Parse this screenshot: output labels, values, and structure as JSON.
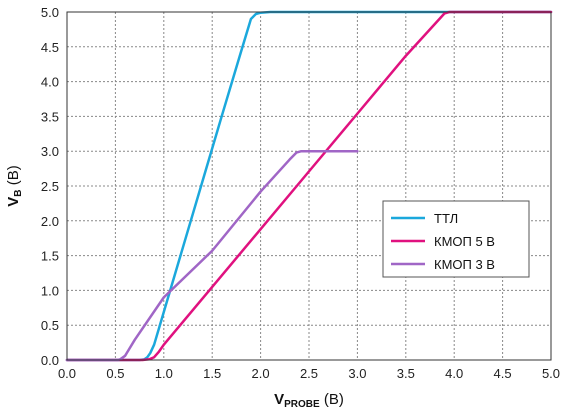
{
  "chart_data": {
    "type": "line",
    "xlabel": {
      "main": "V",
      "sub": "PROBE",
      "unit": " (В)"
    },
    "ylabel": {
      "main": "V",
      "sub": "B",
      "unit": " (В)"
    },
    "xlim": [
      0,
      5
    ],
    "ylim": [
      0,
      5
    ],
    "xticks": [
      0,
      0.5,
      1,
      1.5,
      2,
      2.5,
      3,
      3.5,
      4,
      4.5,
      5
    ],
    "yticks": [
      0,
      0.5,
      1,
      1.5,
      2,
      2.5,
      3,
      3.5,
      4,
      4.5,
      5
    ],
    "grid": true,
    "legend_position": "right",
    "series": [
      {
        "name": "ТТЛ",
        "color": "#1ba8dc",
        "points": [
          [
            0,
            0
          ],
          [
            0.75,
            0
          ],
          [
            0.8,
            0.01
          ],
          [
            0.83,
            0.04
          ],
          [
            0.86,
            0.1
          ],
          [
            0.9,
            0.22
          ],
          [
            1.0,
            0.69
          ],
          [
            1.2,
            1.63
          ],
          [
            1.4,
            2.57
          ],
          [
            1.6,
            3.51
          ],
          [
            1.8,
            4.44
          ],
          [
            1.9,
            4.9
          ],
          [
            1.95,
            4.97
          ],
          [
            2.0,
            4.99
          ],
          [
            2.1,
            5
          ],
          [
            5,
            5
          ]
        ]
      },
      {
        "name": "КМОП 5 В",
        "color": "#e0117f",
        "points": [
          [
            0,
            0
          ],
          [
            0.78,
            0
          ],
          [
            0.85,
            0.01
          ],
          [
            0.9,
            0.04
          ],
          [
            0.95,
            0.12
          ],
          [
            1.0,
            0.22
          ],
          [
            1.5,
            1.05
          ],
          [
            2.0,
            1.88
          ],
          [
            2.5,
            2.71
          ],
          [
            3.0,
            3.54
          ],
          [
            3.5,
            4.37
          ],
          [
            3.9,
            4.98
          ],
          [
            3.95,
            5
          ],
          [
            5,
            5
          ]
        ]
      },
      {
        "name": "КМОП 3 В",
        "color": "#a066c6",
        "points": [
          [
            0,
            0
          ],
          [
            0.52,
            0
          ],
          [
            0.55,
            0.01
          ],
          [
            0.6,
            0.06
          ],
          [
            0.7,
            0.29
          ],
          [
            1.0,
            0.9
          ],
          [
            1.5,
            1.57
          ],
          [
            2.0,
            2.42
          ],
          [
            2.3,
            2.88
          ],
          [
            2.37,
            2.98
          ],
          [
            2.42,
            3
          ],
          [
            3.0,
            3
          ]
        ]
      }
    ]
  }
}
